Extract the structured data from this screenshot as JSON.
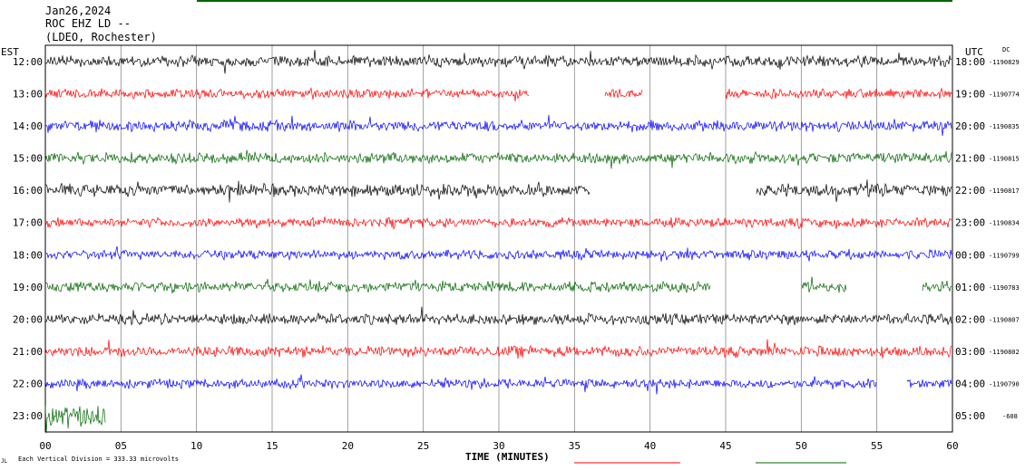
{
  "header": {
    "date": "Jan26,2024",
    "station": "ROC EHZ LD --",
    "network": "(LDEO, Rochester)"
  },
  "labels": {
    "left_tz": "EST",
    "right_tz": "UTC",
    "dc_header": "DC",
    "xlabel": "TIME (MINUTES)",
    "scale_note": "Each Vertical Division =  333.33 microvolts"
  },
  "chart_data": {
    "type": "line",
    "x_range": [
      0,
      60
    ],
    "x_ticks": [
      "00",
      "05",
      "10",
      "15",
      "20",
      "25",
      "30",
      "35",
      "40",
      "45",
      "50",
      "55",
      "60"
    ],
    "rows": [
      {
        "est": "12:00",
        "utc": "18:00",
        "dc": "-1190829",
        "color": "#000000",
        "amp": 7,
        "gaps": []
      },
      {
        "est": "13:00",
        "utc": "19:00",
        "dc": "-1190774",
        "color": "#ff0000",
        "amp": 6,
        "gaps": [
          [
            32,
            37
          ],
          [
            39.5,
            45
          ]
        ]
      },
      {
        "est": "14:00",
        "utc": "20:00",
        "dc": "-1190835",
        "color": "#0000ff",
        "amp": 7,
        "gaps": []
      },
      {
        "est": "15:00",
        "utc": "21:00",
        "dc": "-1190815",
        "color": "#006400",
        "amp": 7,
        "gaps": []
      },
      {
        "est": "16:00",
        "utc": "22:00",
        "dc": "-1190817",
        "color": "#000000",
        "amp": 8,
        "gaps": [
          [
            36,
            47
          ]
        ]
      },
      {
        "est": "17:00",
        "utc": "23:00",
        "dc": "-1190834",
        "color": "#ff0000",
        "amp": 6,
        "gaps": []
      },
      {
        "est": "18:00",
        "utc": "00:00",
        "dc": "-1190799",
        "color": "#0000ff",
        "amp": 6,
        "gaps": []
      },
      {
        "est": "19:00",
        "utc": "01:00",
        "dc": "-1190783",
        "color": "#006400",
        "amp": 7,
        "gaps": [
          [
            44,
            50
          ],
          [
            53,
            58
          ]
        ]
      },
      {
        "est": "20:00",
        "utc": "02:00",
        "dc": "-1190807",
        "color": "#000000",
        "amp": 7,
        "gaps": []
      },
      {
        "est": "21:00",
        "utc": "03:00",
        "dc": "-1190802",
        "color": "#ff0000",
        "amp": 7,
        "gaps": []
      },
      {
        "est": "22:00",
        "utc": "04:00",
        "dc": "-1190790",
        "color": "#0000ff",
        "amp": 6,
        "gaps": [
          [
            55,
            57
          ]
        ]
      },
      {
        "est": "23:00",
        "utc": "05:00",
        "dc": "-608",
        "color": "#006400",
        "amp": 14,
        "gaps": [
          [
            4,
            60
          ]
        ]
      }
    ]
  }
}
